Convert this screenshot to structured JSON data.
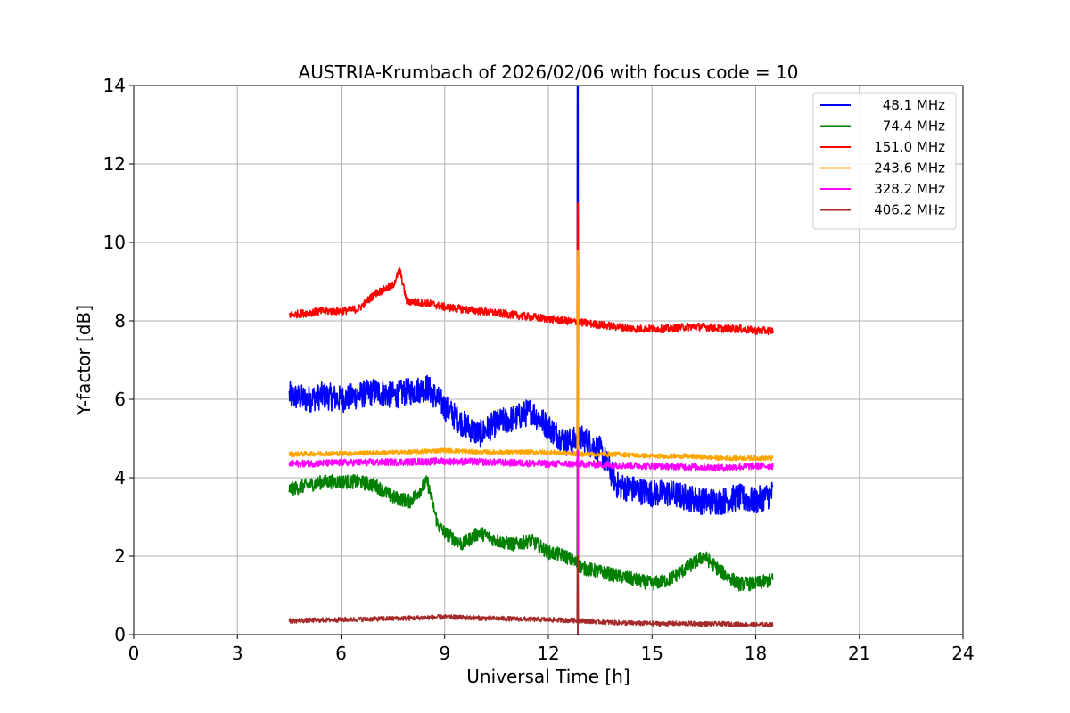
{
  "chart_data": {
    "type": "line",
    "title": "AUSTRIA-Krumbach of 2026/02/06 with focus code = 10",
    "xlabel": "Universal Time [h]",
    "ylabel": "Y-factor [dB]",
    "xlim": [
      0,
      24
    ],
    "ylim": [
      0,
      14
    ],
    "xticks": [
      0,
      3,
      6,
      9,
      12,
      15,
      18,
      21,
      24
    ],
    "yticks": [
      0,
      2,
      4,
      6,
      8,
      10,
      12,
      14
    ],
    "grid": true,
    "legend_position": "top-right",
    "spike_time": 12.85,
    "series": [
      {
        "name": "48.1 MHz",
        "label": " 48.1 MHz",
        "color": "#0000ff",
        "noise": 0.35,
        "x": [
          4.5,
          5.0,
          5.5,
          6.0,
          6.5,
          7.0,
          7.5,
          8.0,
          8.5,
          9.0,
          9.5,
          10.0,
          10.5,
          11.0,
          11.5,
          12.0,
          12.5,
          13.0,
          13.5,
          14.0,
          14.5,
          15.0,
          15.5,
          16.0,
          16.5,
          17.0,
          17.5,
          18.0,
          18.5
        ],
        "y": [
          6.1,
          6.0,
          6.1,
          6.0,
          6.1,
          6.2,
          6.1,
          6.2,
          6.3,
          5.8,
          5.4,
          5.1,
          5.4,
          5.5,
          5.7,
          5.3,
          4.9,
          5.0,
          4.7,
          3.8,
          3.7,
          3.6,
          3.6,
          3.5,
          3.4,
          3.4,
          3.5,
          3.4,
          3.6
        ],
        "spike_peak": 14.0
      },
      {
        "name": "74.4 MHz",
        "label": " 74.4 MHz",
        "color": "#008000",
        "noise": 0.18,
        "x": [
          4.5,
          5.0,
          5.5,
          6.0,
          6.5,
          7.0,
          7.5,
          8.0,
          8.5,
          8.8,
          9.0,
          9.5,
          10.0,
          10.5,
          11.0,
          11.5,
          12.0,
          12.5,
          13.0,
          13.5,
          14.0,
          14.5,
          15.0,
          15.5,
          16.0,
          16.5,
          17.0,
          17.5,
          18.0,
          18.5
        ],
        "y": [
          3.7,
          3.8,
          3.9,
          3.9,
          3.9,
          3.8,
          3.5,
          3.4,
          3.9,
          2.8,
          2.6,
          2.3,
          2.6,
          2.4,
          2.3,
          2.4,
          2.1,
          2.0,
          1.7,
          1.6,
          1.5,
          1.4,
          1.3,
          1.4,
          1.7,
          2.0,
          1.6,
          1.3,
          1.3,
          1.4
        ],
        "spike_peak": 6.7
      },
      {
        "name": "151.0 MHz",
        "label": "151.0 MHz",
        "color": "#ff0000",
        "noise": 0.1,
        "x": [
          4.5,
          5.0,
          5.5,
          6.0,
          6.5,
          7.0,
          7.5,
          7.7,
          7.9,
          8.5,
          9.0,
          9.5,
          10.0,
          10.5,
          11.0,
          11.5,
          12.0,
          12.5,
          13.0,
          13.5,
          14.0,
          14.5,
          15.0,
          15.5,
          16.0,
          16.5,
          17.0,
          17.5,
          18.0,
          18.5
        ],
        "y": [
          8.15,
          8.2,
          8.25,
          8.25,
          8.3,
          8.7,
          8.9,
          9.3,
          8.5,
          8.45,
          8.35,
          8.3,
          8.25,
          8.2,
          8.15,
          8.1,
          8.05,
          8.0,
          7.95,
          7.9,
          7.85,
          7.8,
          7.8,
          7.8,
          7.85,
          7.85,
          7.8,
          7.8,
          7.75,
          7.75
        ],
        "spike_peak": 11.0
      },
      {
        "name": "243.6 MHz",
        "label": "243.6 MHz",
        "color": "#ffa500",
        "noise": 0.06,
        "x": [
          4.5,
          6.0,
          8.0,
          9.0,
          10.0,
          11.0,
          12.0,
          13.0,
          14.0,
          15.0,
          16.0,
          17.0,
          18.0,
          18.5
        ],
        "y": [
          4.6,
          4.62,
          4.65,
          4.7,
          4.65,
          4.65,
          4.65,
          4.6,
          4.6,
          4.55,
          4.55,
          4.5,
          4.5,
          4.5
        ],
        "spike_peak": 9.8
      },
      {
        "name": "328.2 MHz",
        "label": "328.2 MHz",
        "color": "#ff00ff",
        "noise": 0.09,
        "x": [
          4.5,
          6.0,
          8.0,
          9.0,
          10.0,
          11.0,
          12.0,
          13.0,
          14.0,
          15.0,
          16.0,
          17.0,
          18.0,
          18.5
        ],
        "y": [
          4.35,
          4.38,
          4.4,
          4.42,
          4.4,
          4.38,
          4.35,
          4.35,
          4.32,
          4.3,
          4.28,
          4.25,
          4.3,
          4.3
        ],
        "spike_peak": 4.7
      },
      {
        "name": "406.2 MHz",
        "label": "406.2 MHz",
        "color": "#a52a2a",
        "noise": 0.06,
        "x": [
          4.5,
          6.0,
          8.0,
          9.0,
          10.0,
          11.0,
          12.0,
          13.0,
          14.0,
          15.0,
          16.0,
          17.0,
          18.0,
          18.5
        ],
        "y": [
          0.35,
          0.38,
          0.42,
          0.45,
          0.42,
          0.4,
          0.38,
          0.35,
          0.3,
          0.28,
          0.28,
          0.27,
          0.25,
          0.25
        ],
        "spike_peak": 2.0
      }
    ]
  }
}
